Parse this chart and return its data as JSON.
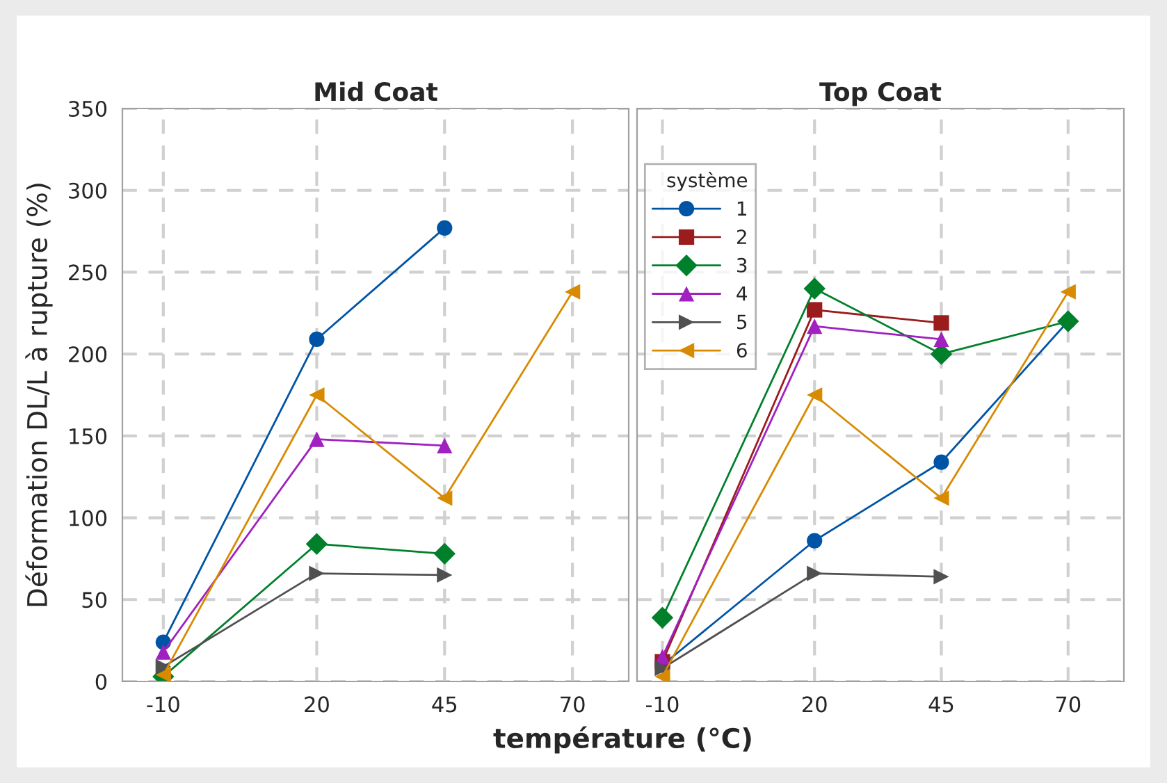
{
  "chart_data": [
    {
      "type": "line",
      "title": "Mid Coat",
      "ylabel": "Déformation DL/L à rupture (%)",
      "xlabel": "température (°C)",
      "legend_title": "système",
      "legend": "top right",
      "grid": true,
      "x": [
        -10,
        20,
        45,
        70
      ],
      "xlim": [
        -18,
        81
      ],
      "xticks": [
        -10,
        20,
        45,
        70
      ],
      "ylim": [
        0,
        350
      ],
      "yticks": [
        0,
        50,
        100,
        150,
        200,
        250,
        300,
        350
      ],
      "series": [
        {
          "name": "1",
          "color": "#0054a6",
          "marker": "circle",
          "values": [
            24,
            209,
            277,
            null
          ]
        },
        {
          "name": "2",
          "color": "#9b1c1c",
          "marker": "square",
          "values": [
            null,
            null,
            null,
            null
          ]
        },
        {
          "name": "3",
          "color": "#00802b",
          "marker": "diamond",
          "values": [
            3,
            84,
            78,
            null
          ]
        },
        {
          "name": "4",
          "color": "#a020c0",
          "marker": "triangle",
          "values": [
            18,
            148,
            144,
            null
          ]
        },
        {
          "name": "5",
          "color": "#505050",
          "marker": "triangle-right",
          "values": [
            9,
            66,
            65,
            null
          ]
        },
        {
          "name": "6",
          "color": "#d88a00",
          "marker": "triangle-left",
          "values": [
            4,
            175,
            112,
            238
          ]
        }
      ]
    },
    {
      "type": "line",
      "title": "Top Coat",
      "grid": true,
      "tick_labels": "x",
      "x": [
        -10,
        20,
        45,
        70
      ],
      "xlim": [
        -15,
        81
      ],
      "xticks": [
        -10,
        20,
        45,
        70
      ],
      "ylim": [
        0,
        350
      ],
      "yticks": [
        0,
        50,
        100,
        150,
        200,
        250,
        300,
        350
      ],
      "series": [
        {
          "color": "#0054a6",
          "marker": "circle",
          "values": [
            10,
            86,
            134,
            220
          ]
        },
        {
          "color": "#9b1c1c",
          "marker": "square",
          "values": [
            12,
            227,
            219,
            null
          ]
        },
        {
          "color": "#00802b",
          "marker": "diamond",
          "values": [
            39,
            240,
            200,
            220
          ]
        },
        {
          "color": "#a020c0",
          "marker": "triangle",
          "values": [
            15,
            217,
            209,
            null
          ]
        },
        {
          "color": "#505050",
          "marker": "triangle-right",
          "values": [
            8,
            66,
            64,
            null
          ]
        },
        {
          "color": "#d88a00",
          "marker": "triangle-left",
          "values": [
            3,
            175,
            112,
            238
          ]
        }
      ]
    }
  ]
}
